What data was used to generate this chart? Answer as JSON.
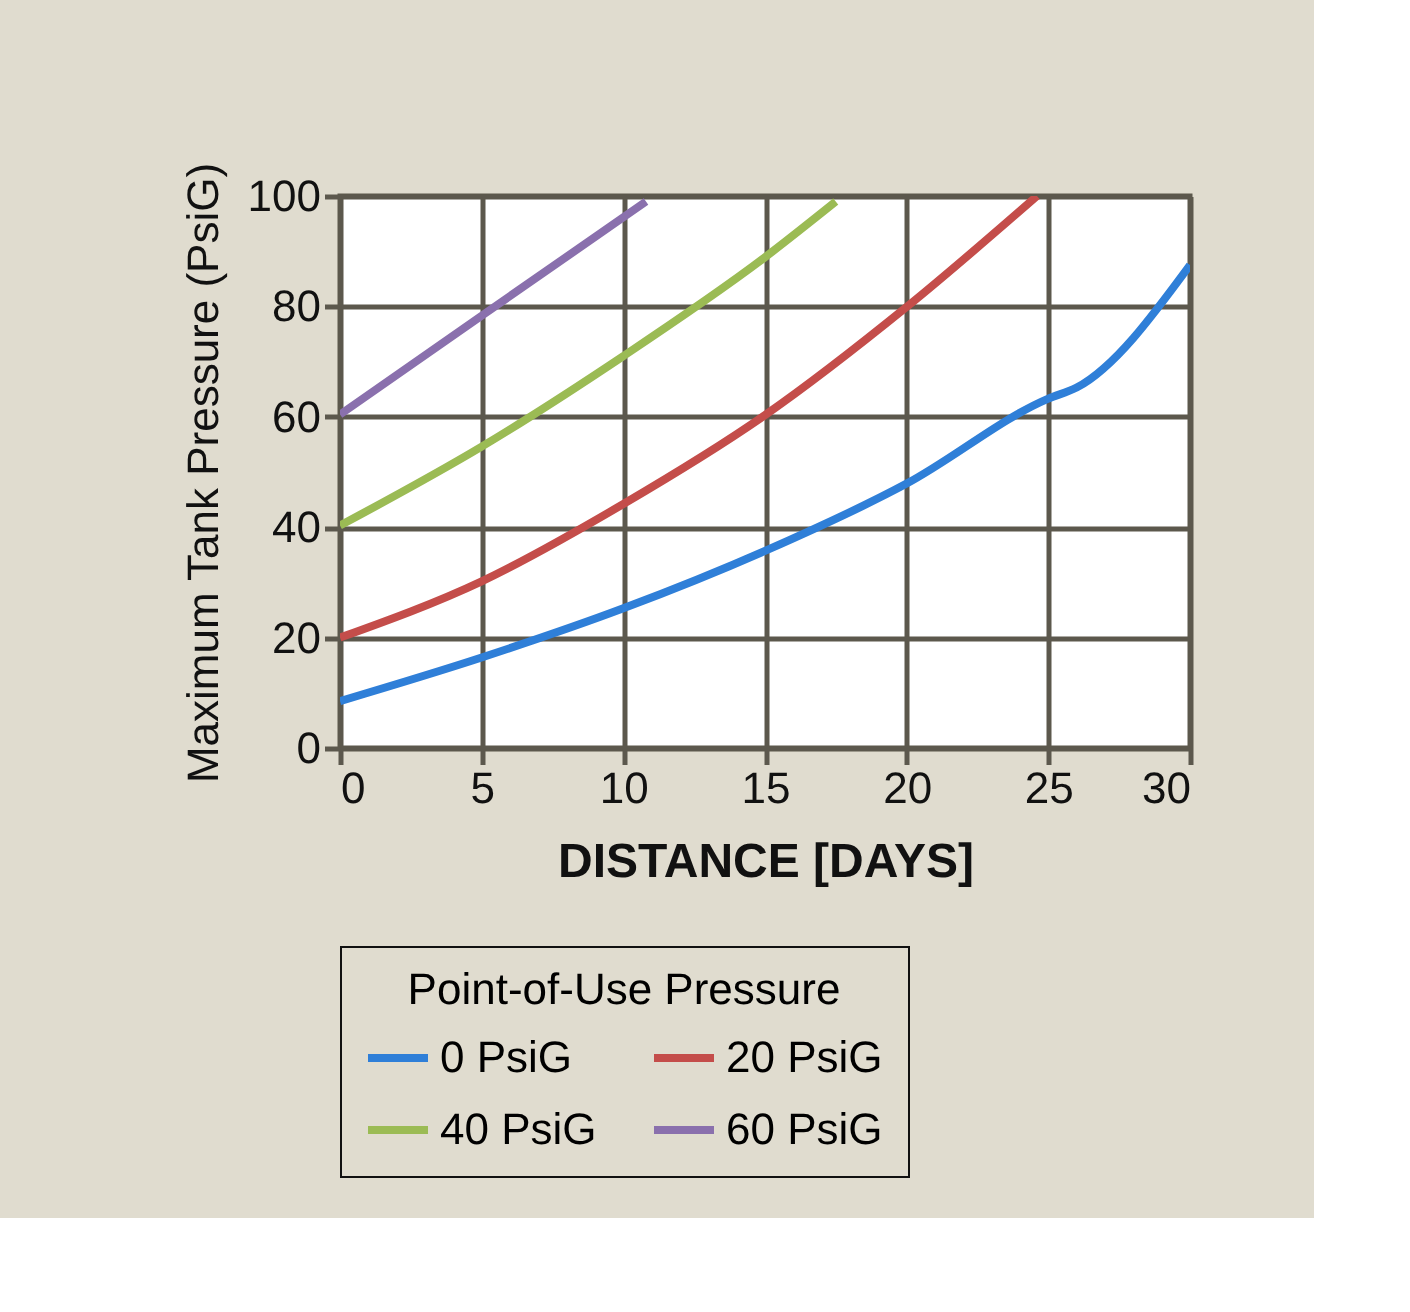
{
  "chart_data": {
    "type": "line",
    "xlabel": "DISTANCE [DAYS]",
    "ylabel": "Maximum Tank Pressure (PsiG)",
    "legend_title": "Point-of-Use Pressure",
    "legend": "bottom",
    "grid": true,
    "marker": "none",
    "line_style": "solid",
    "xlim": [
      0,
      30
    ],
    "ylim": [
      0,
      100
    ],
    "xticks": [
      0,
      5,
      10,
      15,
      20,
      25,
      30
    ],
    "yticks": [
      0,
      20,
      40,
      60,
      80,
      100
    ],
    "series": [
      {
        "name": "0 PsiG",
        "color": "#2f7fd8",
        "x": [
          0,
          5,
          10,
          15,
          20,
          25,
          26,
          30
        ],
        "values": [
          8.5,
          16.4,
          25.3,
          35.7,
          47.9,
          63.3,
          65.3,
          87.5
        ]
      },
      {
        "name": "20 PsiG",
        "color": "#c44d4a",
        "x": [
          0,
          5,
          10,
          15,
          20,
          24.6
        ],
        "values": [
          20,
          30.2,
          44.2,
          60.3,
          79.9,
          100
        ]
      },
      {
        "name": "40 PsiG",
        "color": "#9bbb54",
        "x": [
          0,
          5,
          10,
          15,
          17.5
        ],
        "values": [
          40.3,
          54.6,
          71,
          88.9,
          99
        ]
      },
      {
        "name": "60 PsiG",
        "color": "#8a70ad",
        "x": [
          0,
          5,
          10.8
        ],
        "values": [
          60.4,
          78.3,
          99
        ]
      }
    ]
  }
}
